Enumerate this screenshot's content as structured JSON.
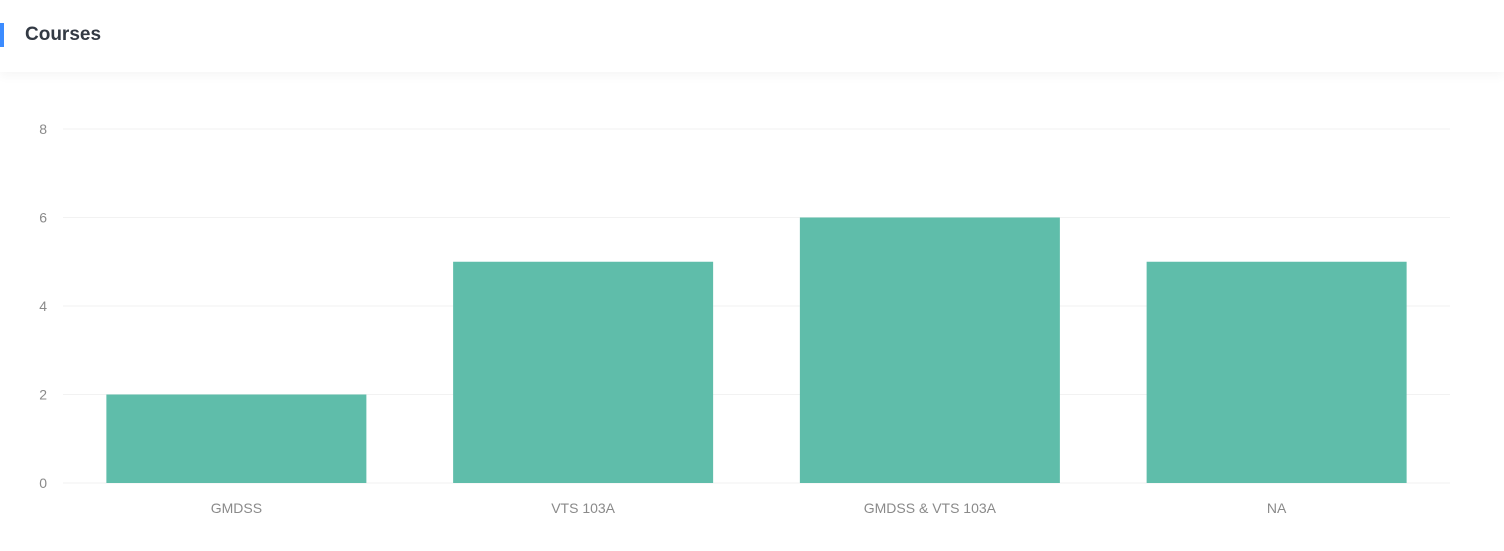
{
  "header": {
    "title": "Courses"
  },
  "colors": {
    "accent": "#3c8cff",
    "bar": "#5fbdaa",
    "grid": "#f2f2f2",
    "tick_text": "#8a8a8a"
  },
  "chart_data": {
    "type": "bar",
    "title": "",
    "xlabel": "",
    "ylabel": "",
    "categories": [
      "GMDSS",
      "VTS 103A",
      "GMDSS & VTS 103A",
      "NA"
    ],
    "values": [
      2,
      5,
      6,
      5
    ],
    "ylim": [
      0,
      8
    ],
    "yticks": [
      0,
      2,
      4,
      6,
      8
    ],
    "grid": true,
    "legend": "none"
  }
}
